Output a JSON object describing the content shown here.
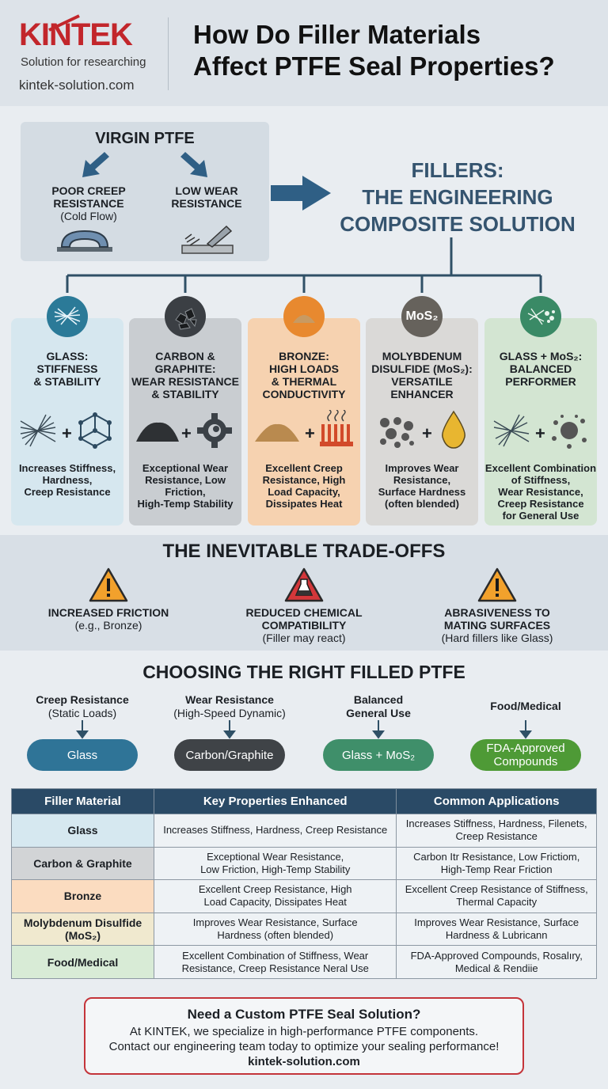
{
  "header": {
    "brand": "KINTEK",
    "tagline": "Solution for researching",
    "url": "kintek-solution.com",
    "title_line1": "How Do Filler Materials",
    "title_line2": "Affect PTFE Seal Properties?"
  },
  "virgin": {
    "title": "VIRGIN PTFE",
    "issue1_line1": "POOR CREEP",
    "issue1_line2": "RESISTANCE",
    "issue1_line3": "(Cold Flow)",
    "issue2_line1": "LOW WEAR",
    "issue2_line2": "RESISTANCE"
  },
  "fillers": {
    "line1": "FILLERS:",
    "line2": "THE ENGINEERING",
    "line3": "COMPOSITE SOLUTION"
  },
  "cards": [
    {
      "title": [
        "GLASS:",
        "STIFFNESS",
        "& STABILITY"
      ],
      "desc": [
        "Increases Stiffness,",
        "Hardness,",
        "Creep Resistance"
      ],
      "bg": "#d6e7ef",
      "icon": "glass-fiber-icon"
    },
    {
      "title": [
        "CARBON &",
        "GRAPHITE:",
        "WEAR RESISTANCE",
        "& STABILITY"
      ],
      "desc": [
        "Exceptional Wear",
        "Resistance, Low",
        "Friction,",
        "High-Temp Stability"
      ],
      "bg": "#c9cdd1",
      "icon": "carbon-powder-icon"
    },
    {
      "title": [
        "BRONZE:",
        "HIGH LOADS",
        "& THERMAL",
        "CONDUCTIVITY"
      ],
      "desc": [
        "Excellent Creep",
        "Resistance, High",
        "Load Capacity,",
        "Dissipates Heat"
      ],
      "bg": "#f6d2b0",
      "icon": "bronze-powder-icon"
    },
    {
      "title": [
        "MOLYBDENUM",
        "DISULFIDE (MoS₂):",
        "VERSATILE",
        "ENHANCER"
      ],
      "desc": [
        "Improves Wear",
        "Resistance,",
        "Surface Hardness",
        "(often blended)"
      ],
      "bg": "#dad9d7",
      "icon": "mos2-icon",
      "badge": "MoS₂"
    },
    {
      "title": [
        "GLASS + MoS₂:",
        "BALANCED",
        "PERFORMER"
      ],
      "desc": [
        "Excellent Combination",
        "of Stiffness,",
        "Wear Resistance,",
        "Creep Resistance",
        "for General Use"
      ],
      "bg": "#d3e5d2",
      "icon": "glass-mos2-icon"
    }
  ],
  "tradeoffs": {
    "title": "THE INEVITABLE TRADE-OFFS",
    "items": [
      {
        "line1": "INCREASED FRICTION",
        "line2": "",
        "note": "(e.g., Bronze)",
        "color": "#f2a12c"
      },
      {
        "line1": "REDUCED CHEMICAL",
        "line2": "COMPATIBILITY",
        "note": "(Filler may react)",
        "color": "#d3373a"
      },
      {
        "line1": "ABRASIVENESS TO",
        "line2": "MATING SURFACES",
        "note": "(Hard fillers like Glass)",
        "color": "#f2a12c"
      }
    ]
  },
  "choosing": {
    "title": "CHOOSING THE RIGHT FILLED PTFE",
    "items": [
      {
        "need1": "Creep Resistance",
        "need2": "(Static Loads)",
        "pill": "Glass",
        "pill2": "",
        "color": "#2f7497"
      },
      {
        "need1": "Wear Resistance",
        "need2": "(High-Speed Dynamic)",
        "pill": "Carbon/Graphite",
        "pill2": "",
        "color": "#3f4347"
      },
      {
        "need1": "Balanced",
        "need2": "General Use",
        "pill": "Glass + MoS₂",
        "pill2": "",
        "color": "#3f8f6a"
      },
      {
        "need1": "Food/Medical",
        "need2": "",
        "pill": "FDA-Approved",
        "pill2": "Compounds",
        "color": "#4e9a36"
      }
    ]
  },
  "table": {
    "headers": [
      "Filler Material",
      "Key Properties Enhanced",
      "Common Applications"
    ],
    "rows": [
      {
        "material": "Glass",
        "material2": "",
        "props": "Increases Stiffness, Hardness, Creep Resistance",
        "props2": "",
        "apps": "Increases Stiffness, Hardness, Filenets,",
        "apps2": "Creep Resistance",
        "bg": "#d6e8f0"
      },
      {
        "material": "Carbon & Graphite",
        "material2": "",
        "props": "Exceptional Wear Resistance,",
        "props2": "Low Friction, High-Temp Stability",
        "apps": "Carbon Itr Resistance, Low Frictiom,",
        "apps2": "High-Temp Rear Friction",
        "bg": "#d2d4d6"
      },
      {
        "material": "Bronze",
        "material2": "",
        "props": "Excellent Creep Resistance, High",
        "props2": "Load Capacity, Dissipates Heat",
        "apps": "Excellent Creep Resistance of Stiffness,",
        "apps2": "Thermal Capacity",
        "bg": "#fbdcc0"
      },
      {
        "material": "Molybdenum Disulfide",
        "material2": "(MoS₂)",
        "props": "Improves Wear Resistance, Surface",
        "props2": "Hardness (often blended)",
        "apps": "Improves Wear Resistance, Surface",
        "apps2": "Hardness & Lubricann",
        "bg": "#f0e9cf"
      },
      {
        "material": "Food/Medical",
        "material2": "",
        "props": "Excellent Combination of Stiffness, Wear",
        "props2": "Resistance, Creep Resistance Neral Use",
        "apps": "FDA-Approved Compounds, Rosalıry,",
        "apps2": "Medical & Rendiie",
        "bg": "#d8ebd6"
      }
    ]
  },
  "cta": {
    "title": "Need a Custom PTFE Seal Solution?",
    "line1": "At KINTEK, we specialize in high-performance PTFE components.",
    "line2": "Contact our engineering team today to optimize your sealing performance!",
    "url": "kintek-solution.com"
  }
}
